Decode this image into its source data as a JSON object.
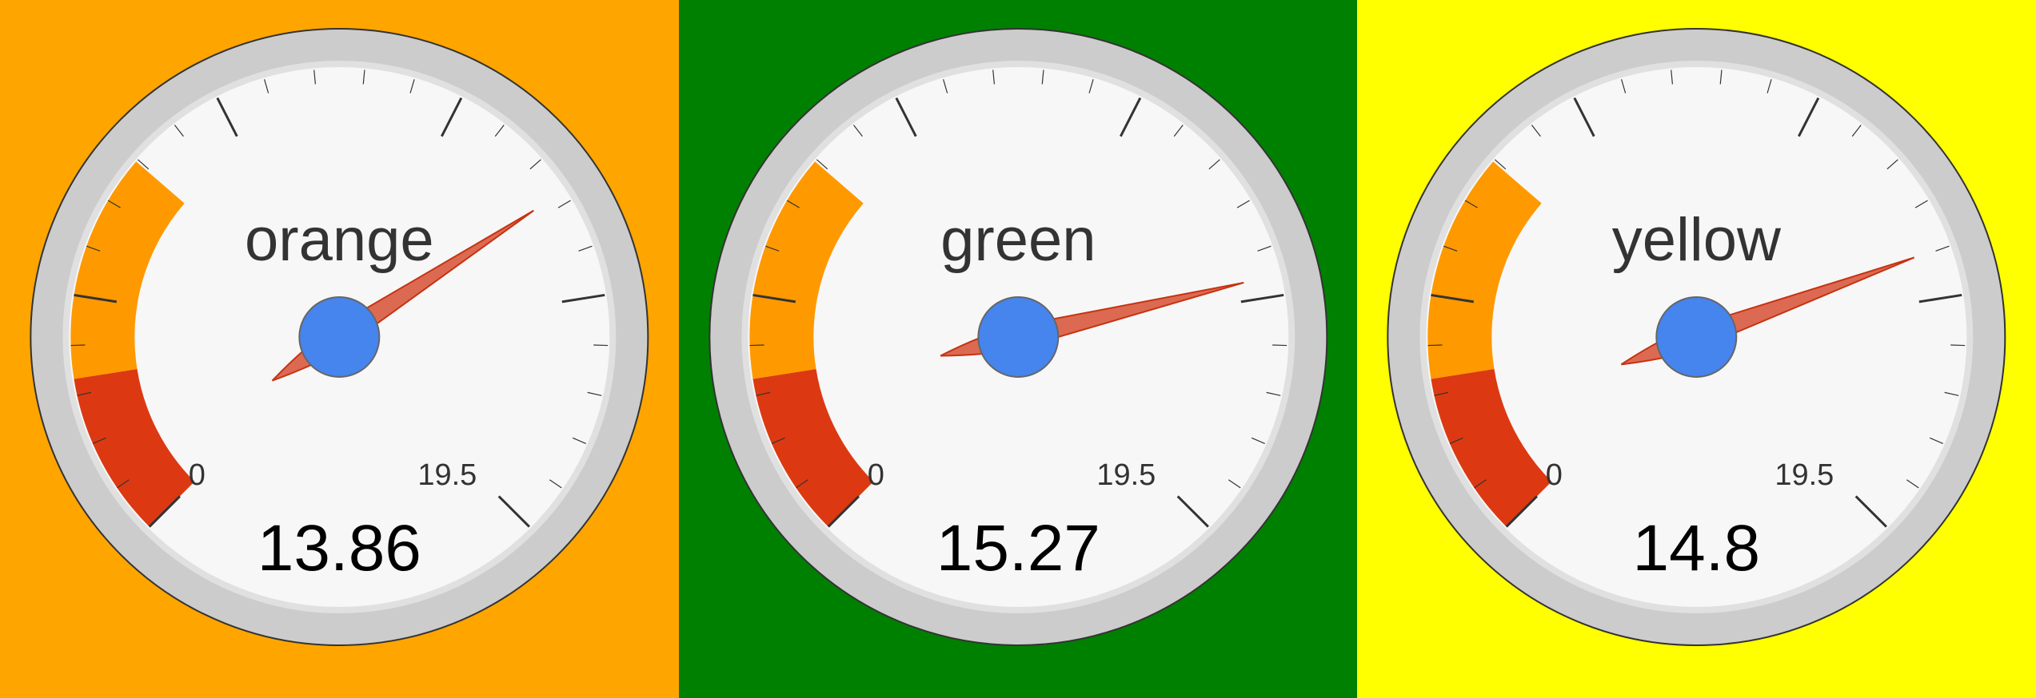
{
  "chart_data": [
    {
      "type": "gauge",
      "label": "orange",
      "value": 13.86,
      "value_text": "13.86",
      "min": 0,
      "max": 19.5,
      "min_label": "0",
      "max_label": "19.5",
      "minor_ticks": 4,
      "background": "#FFA500",
      "bands": [
        {
          "from": 0,
          "to": 2.6,
          "color": "#DC3912"
        },
        {
          "from": 2.6,
          "to": 6.2,
          "color": "#FF9900"
        }
      ]
    },
    {
      "type": "gauge",
      "label": "green",
      "value": 15.27,
      "value_text": "15.27",
      "min": 0,
      "max": 19.5,
      "min_label": "0",
      "max_label": "19.5",
      "minor_ticks": 4,
      "background": "#008000",
      "bands": [
        {
          "from": 0,
          "to": 2.6,
          "color": "#DC3912"
        },
        {
          "from": 2.6,
          "to": 6.2,
          "color": "#FF9900"
        }
      ]
    },
    {
      "type": "gauge",
      "label": "yellow",
      "value": 14.8,
      "value_text": "14.8",
      "min": 0,
      "max": 19.5,
      "min_label": "0",
      "max_label": "19.5",
      "minor_ticks": 4,
      "background": "#FFFF00",
      "bands": [
        {
          "from": 0,
          "to": 2.6,
          "color": "#DC3912"
        },
        {
          "from": 2.6,
          "to": 6.2,
          "color": "#FF9900"
        }
      ]
    }
  ],
  "colors": {
    "bezel": "#CCCCCC",
    "bezel_edge": "#333333",
    "face": "#F7F7F7",
    "face_edge": "#E0E0E0",
    "tick": "#333333",
    "needle": "#DC6A53",
    "needle_edge": "#C63310",
    "hub": "#4684EE",
    "hub_edge": "#666666",
    "label_text": "#333333",
    "value_text": "#000000"
  }
}
